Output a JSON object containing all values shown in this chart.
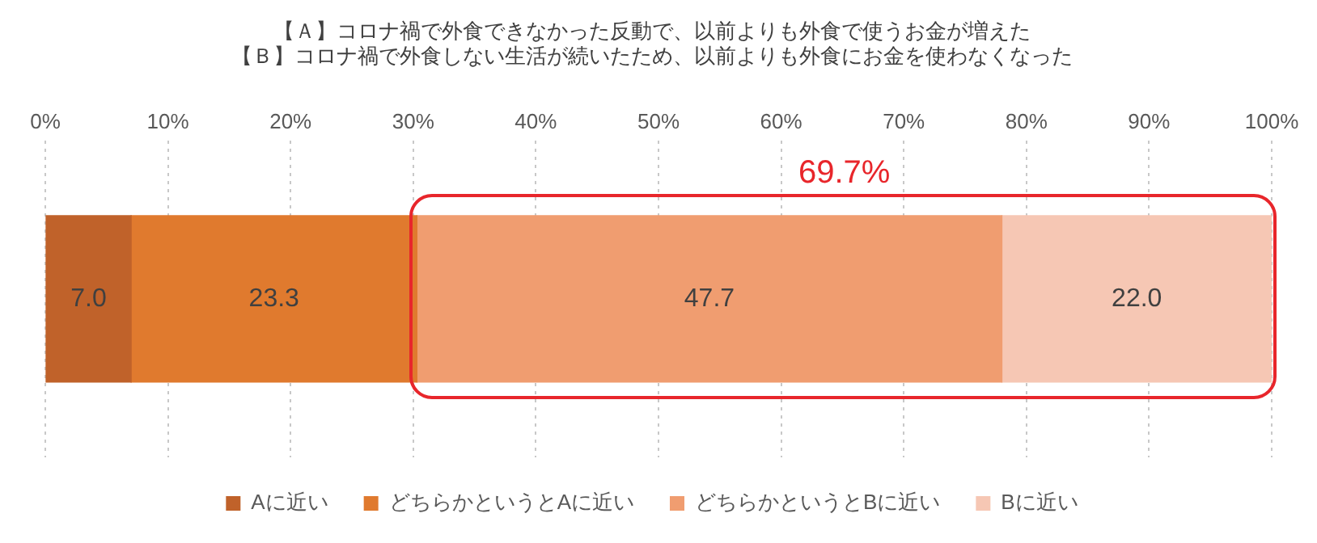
{
  "chart_data": {
    "type": "bar",
    "orientation": "horizontal",
    "stacked": true,
    "title": [
      "【Ａ】コロナ禍で外食できなかった反動で、以前よりも外食で使うお金が増えた",
      "【Ｂ】コロナ禍で外食しない生活が続いたため、以前よりも外食にお金を使わなくなった"
    ],
    "categories": [
      null
    ],
    "series": [
      {
        "name": "Aに近い",
        "color": "#c0622a",
        "values": [
          7.0
        ],
        "value_labels": [
          "7.0"
        ]
      },
      {
        "name": "どちらかというとAに近い",
        "color": "#e07a2e",
        "values": [
          23.3
        ],
        "value_labels": [
          "23.3"
        ]
      },
      {
        "name": "どちらかというとBに近い",
        "color": "#f09d70",
        "values": [
          47.7
        ],
        "value_labels": [
          "47.7"
        ]
      },
      {
        "name": "Bに近い",
        "color": "#f6c7b4",
        "values": [
          22.0
        ],
        "value_labels": [
          "22.0"
        ]
      }
    ],
    "xlim": [
      0,
      100
    ],
    "xticks": [
      {
        "value": 0,
        "label": "0%"
      },
      {
        "value": 10,
        "label": "10%"
      },
      {
        "value": 20,
        "label": "20%"
      },
      {
        "value": 30,
        "label": "30%"
      },
      {
        "value": 40,
        "label": "40%"
      },
      {
        "value": 50,
        "label": "50%"
      },
      {
        "value": 60,
        "label": "60%"
      },
      {
        "value": 70,
        "label": "70%"
      },
      {
        "value": 80,
        "label": "80%"
      },
      {
        "value": 90,
        "label": "90%"
      },
      {
        "value": 100,
        "label": "100%"
      }
    ],
    "grid": "x",
    "legend": "bottom",
    "annotations": [
      "69.7%"
    ]
  }
}
